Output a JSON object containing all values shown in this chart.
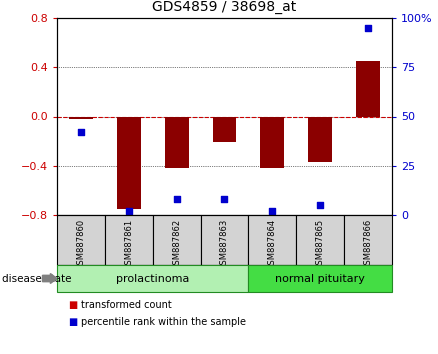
{
  "title": "GDS4859 / 38698_at",
  "samples": [
    "GSM887860",
    "GSM887861",
    "GSM887862",
    "GSM887863",
    "GSM887864",
    "GSM887865",
    "GSM887866"
  ],
  "bar_values": [
    -0.02,
    -0.75,
    -0.42,
    -0.21,
    -0.42,
    -0.37,
    0.45
  ],
  "percentile_values": [
    42,
    2,
    8,
    8,
    2,
    5,
    95
  ],
  "ylim_left": [
    -0.8,
    0.8
  ],
  "ylim_right": [
    0,
    100
  ],
  "yticks_left": [
    -0.8,
    -0.4,
    0,
    0.4,
    0.8
  ],
  "yticks_right": [
    0,
    25,
    50,
    75,
    100
  ],
  "ytick_labels_right": [
    "0",
    "25",
    "50",
    "75",
    "100%"
  ],
  "bar_color": "#8B0000",
  "point_color": "#0000CD",
  "zero_line_color": "#CC0000",
  "grid_color": "#000000",
  "groups": [
    {
      "label": "prolactinoma",
      "start": 0,
      "end": 3,
      "color": "#b2f0b2",
      "border_color": "#228B22"
    },
    {
      "label": "normal pituitary",
      "start": 4,
      "end": 6,
      "color": "#44dd44",
      "border_color": "#228B22"
    }
  ],
  "disease_state_label": "disease state",
  "legend_items": [
    {
      "label": "transformed count",
      "color": "#CC0000"
    },
    {
      "label": "percentile rank within the sample",
      "color": "#0000CD"
    }
  ],
  "bar_width": 0.5,
  "tick_label_color_left": "#CC0000",
  "tick_label_color_right": "#0000CD",
  "background_color": "#ffffff",
  "sample_label_bg": "#d3d3d3",
  "sample_label_border": "#000000"
}
